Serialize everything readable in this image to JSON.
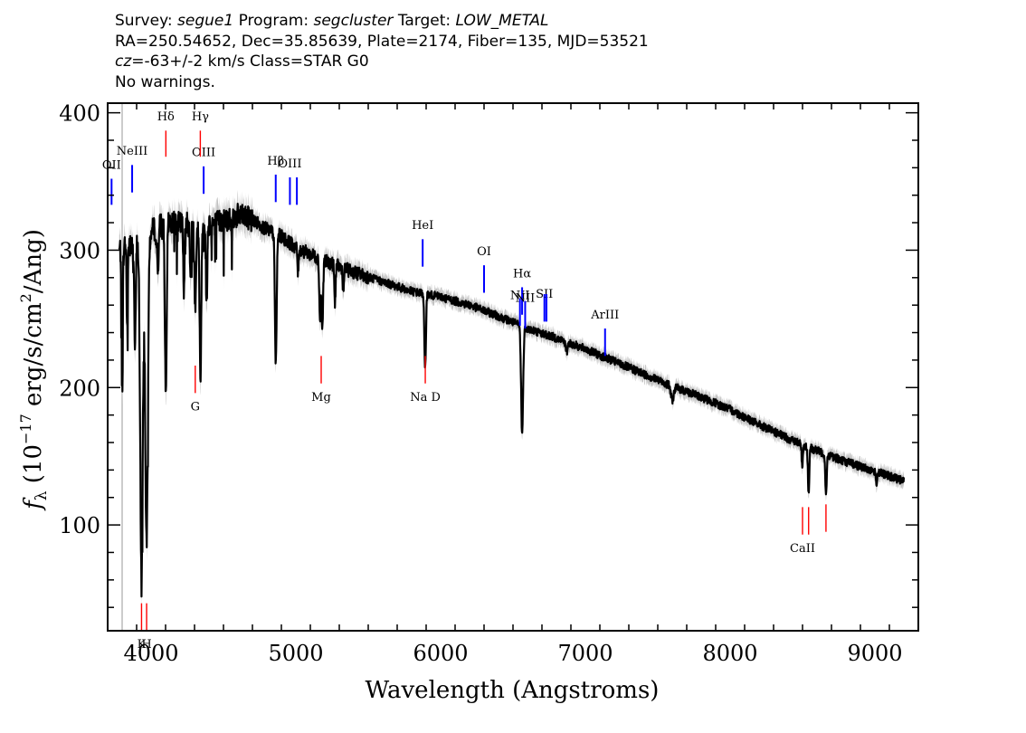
{
  "header": {
    "survey_label": "Survey:",
    "survey": "segue1",
    "program_label": "Program:",
    "program": "segcluster",
    "target_label": "Target:",
    "target": "LOW_METAL",
    "line2": "RA=250.54652, Dec=35.85639, Plate=2174, Fiber=135, MJD=53521",
    "cz_label": "cz",
    "cz_value": "=-63+/-2 km/s",
    "class_text": "Class=STAR G0",
    "warnings": "No warnings."
  },
  "chart_data": {
    "type": "line",
    "title": "",
    "xlabel": "Wavelength (Angstroms)",
    "ylabel": "f_λ (10^-17 erg/s/cm^2/Ang)",
    "ylabel_parts": {
      "f": "f",
      "sub": "λ",
      "pre": " (10",
      "exp1": "−17",
      "mid": " erg/s/cm",
      "exp2": "2",
      "post": "/Ang)"
    },
    "xlim": [
      3700,
      9300
    ],
    "ylim": [
      23,
      407
    ],
    "xticks": [
      4000,
      5000,
      6000,
      7000,
      8000,
      9000
    ],
    "yticks": [
      100,
      200,
      300,
      400
    ],
    "colors": {
      "spectrum": "#000000",
      "error_band": "#bbbbbb",
      "emission": "#0000ff",
      "absorption": "#ff0000"
    },
    "spectrum": {
      "continuum": [
        [
          3780,
          300
        ],
        [
          3850,
          305
        ],
        [
          3950,
          308
        ],
        [
          4050,
          318
        ],
        [
          4150,
          320
        ],
        [
          4300,
          318
        ],
        [
          4450,
          320
        ],
        [
          4600,
          325
        ],
        [
          4700,
          322
        ],
        [
          4800,
          315
        ],
        [
          4900,
          310
        ],
        [
          5000,
          302
        ],
        [
          5200,
          292
        ],
        [
          5400,
          284
        ],
        [
          5600,
          277
        ],
        [
          5800,
          270
        ],
        [
          6000,
          266
        ],
        [
          6200,
          260
        ],
        [
          6400,
          252
        ],
        [
          6600,
          243
        ],
        [
          6800,
          236
        ],
        [
          7000,
          228
        ],
        [
          7200,
          219
        ],
        [
          7400,
          210
        ],
        [
          7600,
          201
        ],
        [
          7800,
          193
        ],
        [
          8000,
          184
        ],
        [
          8200,
          173
        ],
        [
          8400,
          163
        ],
        [
          8600,
          154
        ],
        [
          8800,
          146
        ],
        [
          9000,
          139
        ],
        [
          9200,
          132
        ]
      ],
      "absorption_features": [
        {
          "x": 3800,
          "depth": 90,
          "w": 4
        },
        {
          "x": 3835,
          "depth": 60,
          "w": 4
        },
        {
          "x": 3889,
          "depth": 80,
          "w": 5
        },
        {
          "x": 3933.7,
          "depth": 245,
          "w": 9
        },
        {
          "x": 3968.5,
          "depth": 225,
          "w": 9
        },
        {
          "x": 4046,
          "depth": 35,
          "w": 5
        },
        {
          "x": 4101.7,
          "depth": 130,
          "w": 6
        },
        {
          "x": 4226,
          "depth": 50,
          "w": 4
        },
        {
          "x": 4272,
          "depth": 40,
          "w": 4
        },
        {
          "x": 4305,
          "depth": 55,
          "w": 6
        },
        {
          "x": 4340.5,
          "depth": 110,
          "w": 6
        },
        {
          "x": 4383,
          "depth": 55,
          "w": 5
        },
        {
          "x": 4861.3,
          "depth": 95,
          "w": 6
        },
        {
          "x": 5015,
          "depth": 18,
          "w": 4
        },
        {
          "x": 5167,
          "depth": 45,
          "w": 5
        },
        {
          "x": 5183,
          "depth": 50,
          "w": 5
        },
        {
          "x": 5270,
          "depth": 30,
          "w": 4
        },
        {
          "x": 5328,
          "depth": 18,
          "w": 4
        },
        {
          "x": 5890,
          "depth": 38,
          "w": 4
        },
        {
          "x": 5896,
          "depth": 36,
          "w": 4
        },
        {
          "x": 6563,
          "depth": 78,
          "w": 7
        },
        {
          "x": 6870,
          "depth": 8,
          "w": 6
        },
        {
          "x": 7600,
          "depth": 10,
          "w": 10
        },
        {
          "x": 8498,
          "depth": 16,
          "w": 4
        },
        {
          "x": 8542,
          "depth": 33,
          "w": 5
        },
        {
          "x": 8662,
          "depth": 28,
          "w": 5
        },
        {
          "x": 9010,
          "depth": 8,
          "w": 5
        }
      ]
    },
    "emission_lines": [
      {
        "label": "OII",
        "x": 3727,
        "y_top": 352,
        "y_bot": 333,
        "label_y": 362
      },
      {
        "label": "NeIII",
        "x": 3869,
        "y_top": 362,
        "y_bot": 342,
        "label_y": 372
      },
      {
        "label": "OIII",
        "x": 4363,
        "y_top": 361,
        "y_bot": 341,
        "label_y": 371
      },
      {
        "label": "Hβ",
        "x": 4861,
        "y_top": 355,
        "y_bot": 335,
        "label_y": 365
      },
      {
        "label": "OIII",
        "x": 4959,
        "y_top": 353,
        "y_bot": 333,
        "label_y": 363
      },
      {
        "label": "",
        "x": 5007,
        "y_top": 353,
        "y_bot": 333,
        "label_y": 0
      },
      {
        "label": "HeI",
        "x": 5876,
        "y_top": 308,
        "y_bot": 288,
        "label_y": 318
      },
      {
        "label": "OI",
        "x": 6300,
        "y_top": 289,
        "y_bot": 269,
        "label_y": 299
      },
      {
        "label": "NII",
        "x": 6548,
        "y_top": 265,
        "y_bot": 245,
        "label_y": 267
      },
      {
        "label": "Hα",
        "x": 6563,
        "y_top": 273,
        "y_bot": 253,
        "label_y": 283
      },
      {
        "label": "NII",
        "x": 6584,
        "y_top": 263,
        "y_bot": 243,
        "label_y": 265
      },
      {
        "label": "SII",
        "x": 6717,
        "y_top": 268,
        "y_bot": 248,
        "label_y": 268
      },
      {
        "label": "",
        "x": 6731,
        "y_top": 268,
        "y_bot": 248,
        "label_y": 0
      },
      {
        "label": "ArIII",
        "x": 7136,
        "y_top": 243,
        "y_bot": 223,
        "label_y": 253
      }
    ],
    "absorption_lines": [
      {
        "label": "Hδ",
        "x": 4102,
        "y_top": 387,
        "y_bot": 368,
        "label_y": 397
      },
      {
        "label": "Hγ",
        "x": 4340,
        "y_top": 387,
        "y_bot": 368,
        "label_y": 397
      },
      {
        "label": "G",
        "x": 4305,
        "y_top": 216,
        "y_bot": 196,
        "label_y": 186
      },
      {
        "label": "Mg",
        "x": 5175,
        "y_top": 223,
        "y_bot": 203,
        "label_y": 193
      },
      {
        "label": "Na  D",
        "x": 5894,
        "y_top": 223,
        "y_bot": 203,
        "label_y": 193
      },
      {
        "label": "K",
        "x": 3934,
        "y_top": 43,
        "y_bot": 23,
        "label_y": 13
      },
      {
        "label": "H",
        "x": 3969,
        "y_top": 43,
        "y_bot": 23,
        "label_y": 13
      },
      {
        "label": "CaII",
        "x": 8500,
        "y_top": 113,
        "y_bot": 93,
        "label_y": 83
      },
      {
        "label": "",
        "x": 8542,
        "y_top": 113,
        "y_bot": 93,
        "label_y": 0
      },
      {
        "label": "",
        "x": 8662,
        "y_top": 115,
        "y_bot": 95,
        "label_y": 0
      }
    ]
  }
}
